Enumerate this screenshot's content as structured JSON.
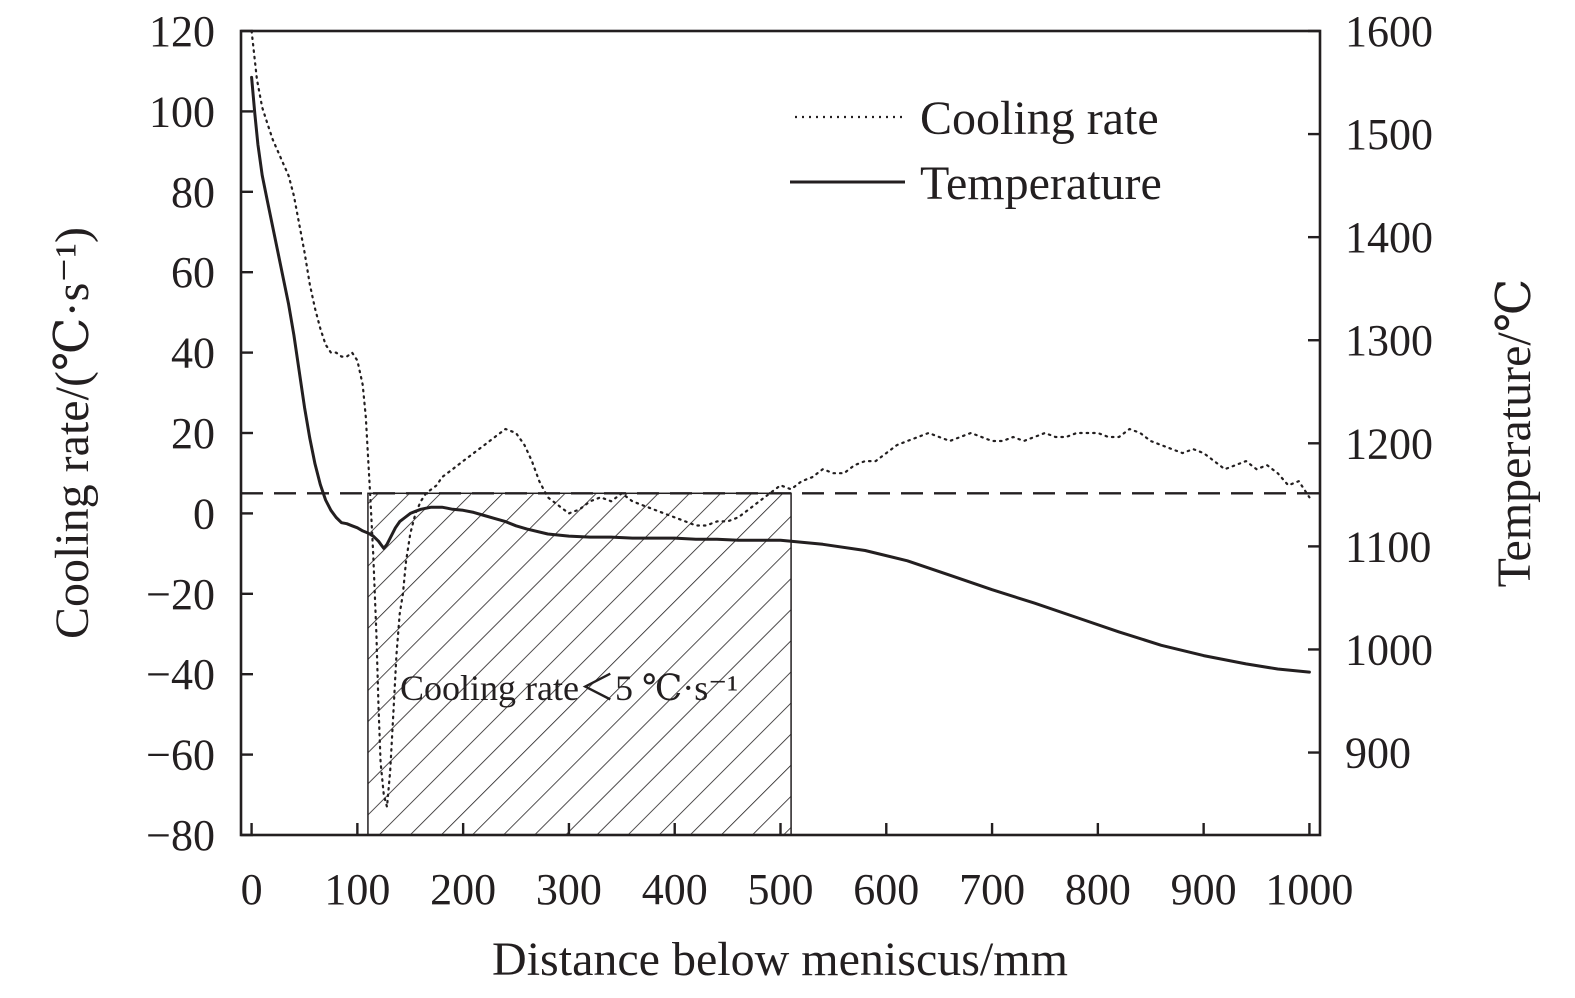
{
  "chart_data": {
    "type": "line",
    "xlabel": "Distance below meniscus/mm",
    "ylabel": "Cooling rate/(℃·s⁻¹)",
    "y2label": "Temperature/℃",
    "xlim": [
      -10,
      1010
    ],
    "ylim": [
      -80,
      120
    ],
    "y2lim": [
      820,
      1600
    ],
    "x_ticks": [
      0,
      100,
      200,
      300,
      400,
      500,
      600,
      700,
      800,
      900,
      1000
    ],
    "y_ticks": [
      -80,
      -60,
      -40,
      -20,
      0,
      20,
      40,
      60,
      80,
      100,
      120
    ],
    "y2_ticks": [
      900,
      1000,
      1100,
      1200,
      1300,
      1400,
      1500,
      1600
    ],
    "grid": false,
    "legend": {
      "position": "top-right",
      "entries": [
        {
          "label": "Cooling rate",
          "style": "dotted"
        },
        {
          "label": "Temperature",
          "style": "solid"
        }
      ]
    },
    "annotation": {
      "text": "Cooling rate＜5 ℃·s⁻¹",
      "x_range": [
        110,
        510
      ],
      "y_range": [
        -80,
        5
      ],
      "threshold": 5,
      "fill": "hatched"
    },
    "series": [
      {
        "name": "Cooling rate",
        "axis": "left",
        "style": "dotted",
        "x": [
          0,
          5,
          10,
          15,
          20,
          25,
          30,
          35,
          40,
          45,
          50,
          55,
          60,
          65,
          70,
          75,
          80,
          85,
          90,
          95,
          100,
          105,
          108,
          112,
          115,
          118,
          120,
          122,
          125,
          128,
          131,
          134,
          137,
          140,
          143,
          146,
          150,
          155,
          160,
          165,
          170,
          175,
          180,
          190,
          200,
          210,
          220,
          230,
          240,
          250,
          258,
          265,
          272,
          280,
          290,
          300,
          310,
          320,
          330,
          340,
          350,
          360,
          370,
          380,
          390,
          400,
          410,
          420,
          430,
          440,
          450,
          460,
          470,
          480,
          490,
          500,
          510,
          520,
          530,
          540,
          550,
          560,
          570,
          580,
          590,
          600,
          610,
          620,
          630,
          640,
          650,
          660,
          670,
          680,
          690,
          700,
          710,
          720,
          730,
          740,
          750,
          760,
          770,
          780,
          790,
          800,
          810,
          820,
          830,
          840,
          850,
          860,
          870,
          880,
          890,
          900,
          910,
          920,
          930,
          940,
          950,
          960,
          970,
          980,
          990,
          1000
        ],
        "values": [
          120,
          108,
          101,
          97,
          93,
          90,
          87,
          84,
          79,
          72,
          65,
          57,
          51,
          46,
          42,
          40,
          40,
          39,
          39,
          40,
          38,
          32,
          24,
          5,
          -10,
          -30,
          -48,
          -62,
          -70,
          -73,
          -64,
          -50,
          -35,
          -25,
          -20,
          -12,
          -5,
          0,
          3,
          5,
          6,
          7,
          9,
          11,
          13,
          15,
          17,
          19,
          21,
          20,
          17,
          13,
          8,
          4,
          2,
          0,
          1,
          3,
          4,
          3,
          5,
          3,
          2,
          1,
          0,
          -1,
          -2,
          -3,
          -3,
          -2,
          -2,
          -1,
          1,
          3,
          5,
          7,
          6,
          8,
          9,
          11,
          10,
          10,
          12,
          13,
          13,
          15,
          17,
          18,
          19,
          20,
          19,
          18,
          19,
          20,
          19,
          18,
          18,
          19,
          18,
          19,
          20,
          19,
          19,
          20,
          20,
          20,
          19,
          19,
          21,
          20,
          18,
          17,
          16,
          15,
          16,
          15,
          13,
          11,
          12,
          13,
          11,
          12,
          10,
          7,
          8,
          4
        ]
      },
      {
        "name": "Temperature",
        "axis": "right",
        "style": "solid",
        "x": [
          0,
          3,
          6,
          10,
          15,
          20,
          25,
          30,
          35,
          40,
          45,
          50,
          55,
          60,
          65,
          70,
          75,
          80,
          85,
          90,
          95,
          100,
          105,
          110,
          115,
          120,
          125,
          128,
          132,
          136,
          140,
          145,
          150,
          155,
          160,
          165,
          170,
          175,
          180,
          185,
          190,
          200,
          210,
          220,
          230,
          240,
          250,
          260,
          280,
          300,
          320,
          340,
          360,
          380,
          400,
          420,
          440,
          460,
          480,
          500,
          510,
          540,
          580,
          620,
          660,
          700,
          740,
          780,
          820,
          860,
          900,
          940,
          970,
          1000
        ],
        "values": [
          1555,
          1520,
          1490,
          1460,
          1435,
          1410,
          1385,
          1360,
          1335,
          1305,
          1270,
          1235,
          1205,
          1180,
          1160,
          1145,
          1135,
          1128,
          1123,
          1122,
          1120,
          1118,
          1115,
          1113,
          1110,
          1105,
          1098,
          1102,
          1110,
          1118,
          1124,
          1128,
          1132,
          1134,
          1136,
          1137,
          1138,
          1138,
          1138,
          1137,
          1136,
          1135,
          1133,
          1130,
          1127,
          1124,
          1120,
          1117,
          1112,
          1110,
          1109,
          1109,
          1108,
          1108,
          1108,
          1107,
          1107,
          1106,
          1106,
          1106,
          1105,
          1102,
          1096,
          1086,
          1072,
          1058,
          1045,
          1031,
          1017,
          1004,
          994,
          986,
          981,
          978
        ]
      }
    ]
  }
}
